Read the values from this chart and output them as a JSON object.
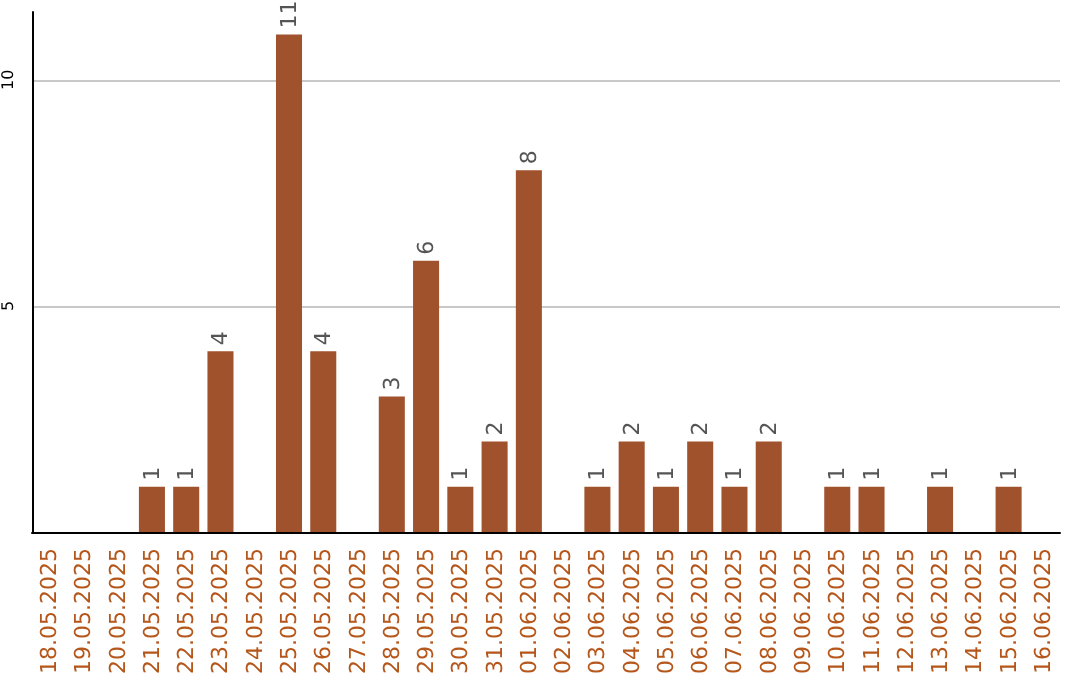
{
  "chart_data": {
    "type": "bar",
    "categories": [
      "18.05.2025",
      "19.05.2025",
      "20.05.2025",
      "21.05.2025",
      "22.05.2025",
      "23.05.2025",
      "24.05.2025",
      "25.05.2025",
      "26.05.2025",
      "27.05.2025",
      "28.05.2025",
      "29.05.2025",
      "30.05.2025",
      "31.05.2025",
      "01.06.2025",
      "02.06.2025",
      "03.06.2025",
      "04.06.2025",
      "05.06.2025",
      "06.06.2025",
      "07.06.2025",
      "08.06.2025",
      "09.06.2025",
      "10.06.2025",
      "11.06.2025",
      "12.06.2025",
      "13.06.2025",
      "14.06.2025",
      "15.06.2025",
      "16.06.2025"
    ],
    "values": [
      0,
      0,
      0,
      1,
      1,
      4,
      0,
      11,
      4,
      0,
      3,
      6,
      1,
      2,
      8,
      0,
      1,
      2,
      1,
      2,
      1,
      2,
      0,
      1,
      1,
      0,
      1,
      0,
      1,
      0
    ],
    "value_labels": [
      null,
      null,
      null,
      "1",
      "1",
      "4",
      null,
      "11",
      "4",
      null,
      "3",
      "6",
      "1",
      "2",
      "8",
      null,
      "1",
      "2",
      "1",
      "2",
      "1",
      "2",
      null,
      "1",
      "1",
      null,
      "1",
      null,
      "1",
      null
    ],
    "color": "#a0522d",
    "ylim": [
      0,
      11.5
    ],
    "yticks": [
      5,
      10
    ],
    "grid": "y"
  }
}
